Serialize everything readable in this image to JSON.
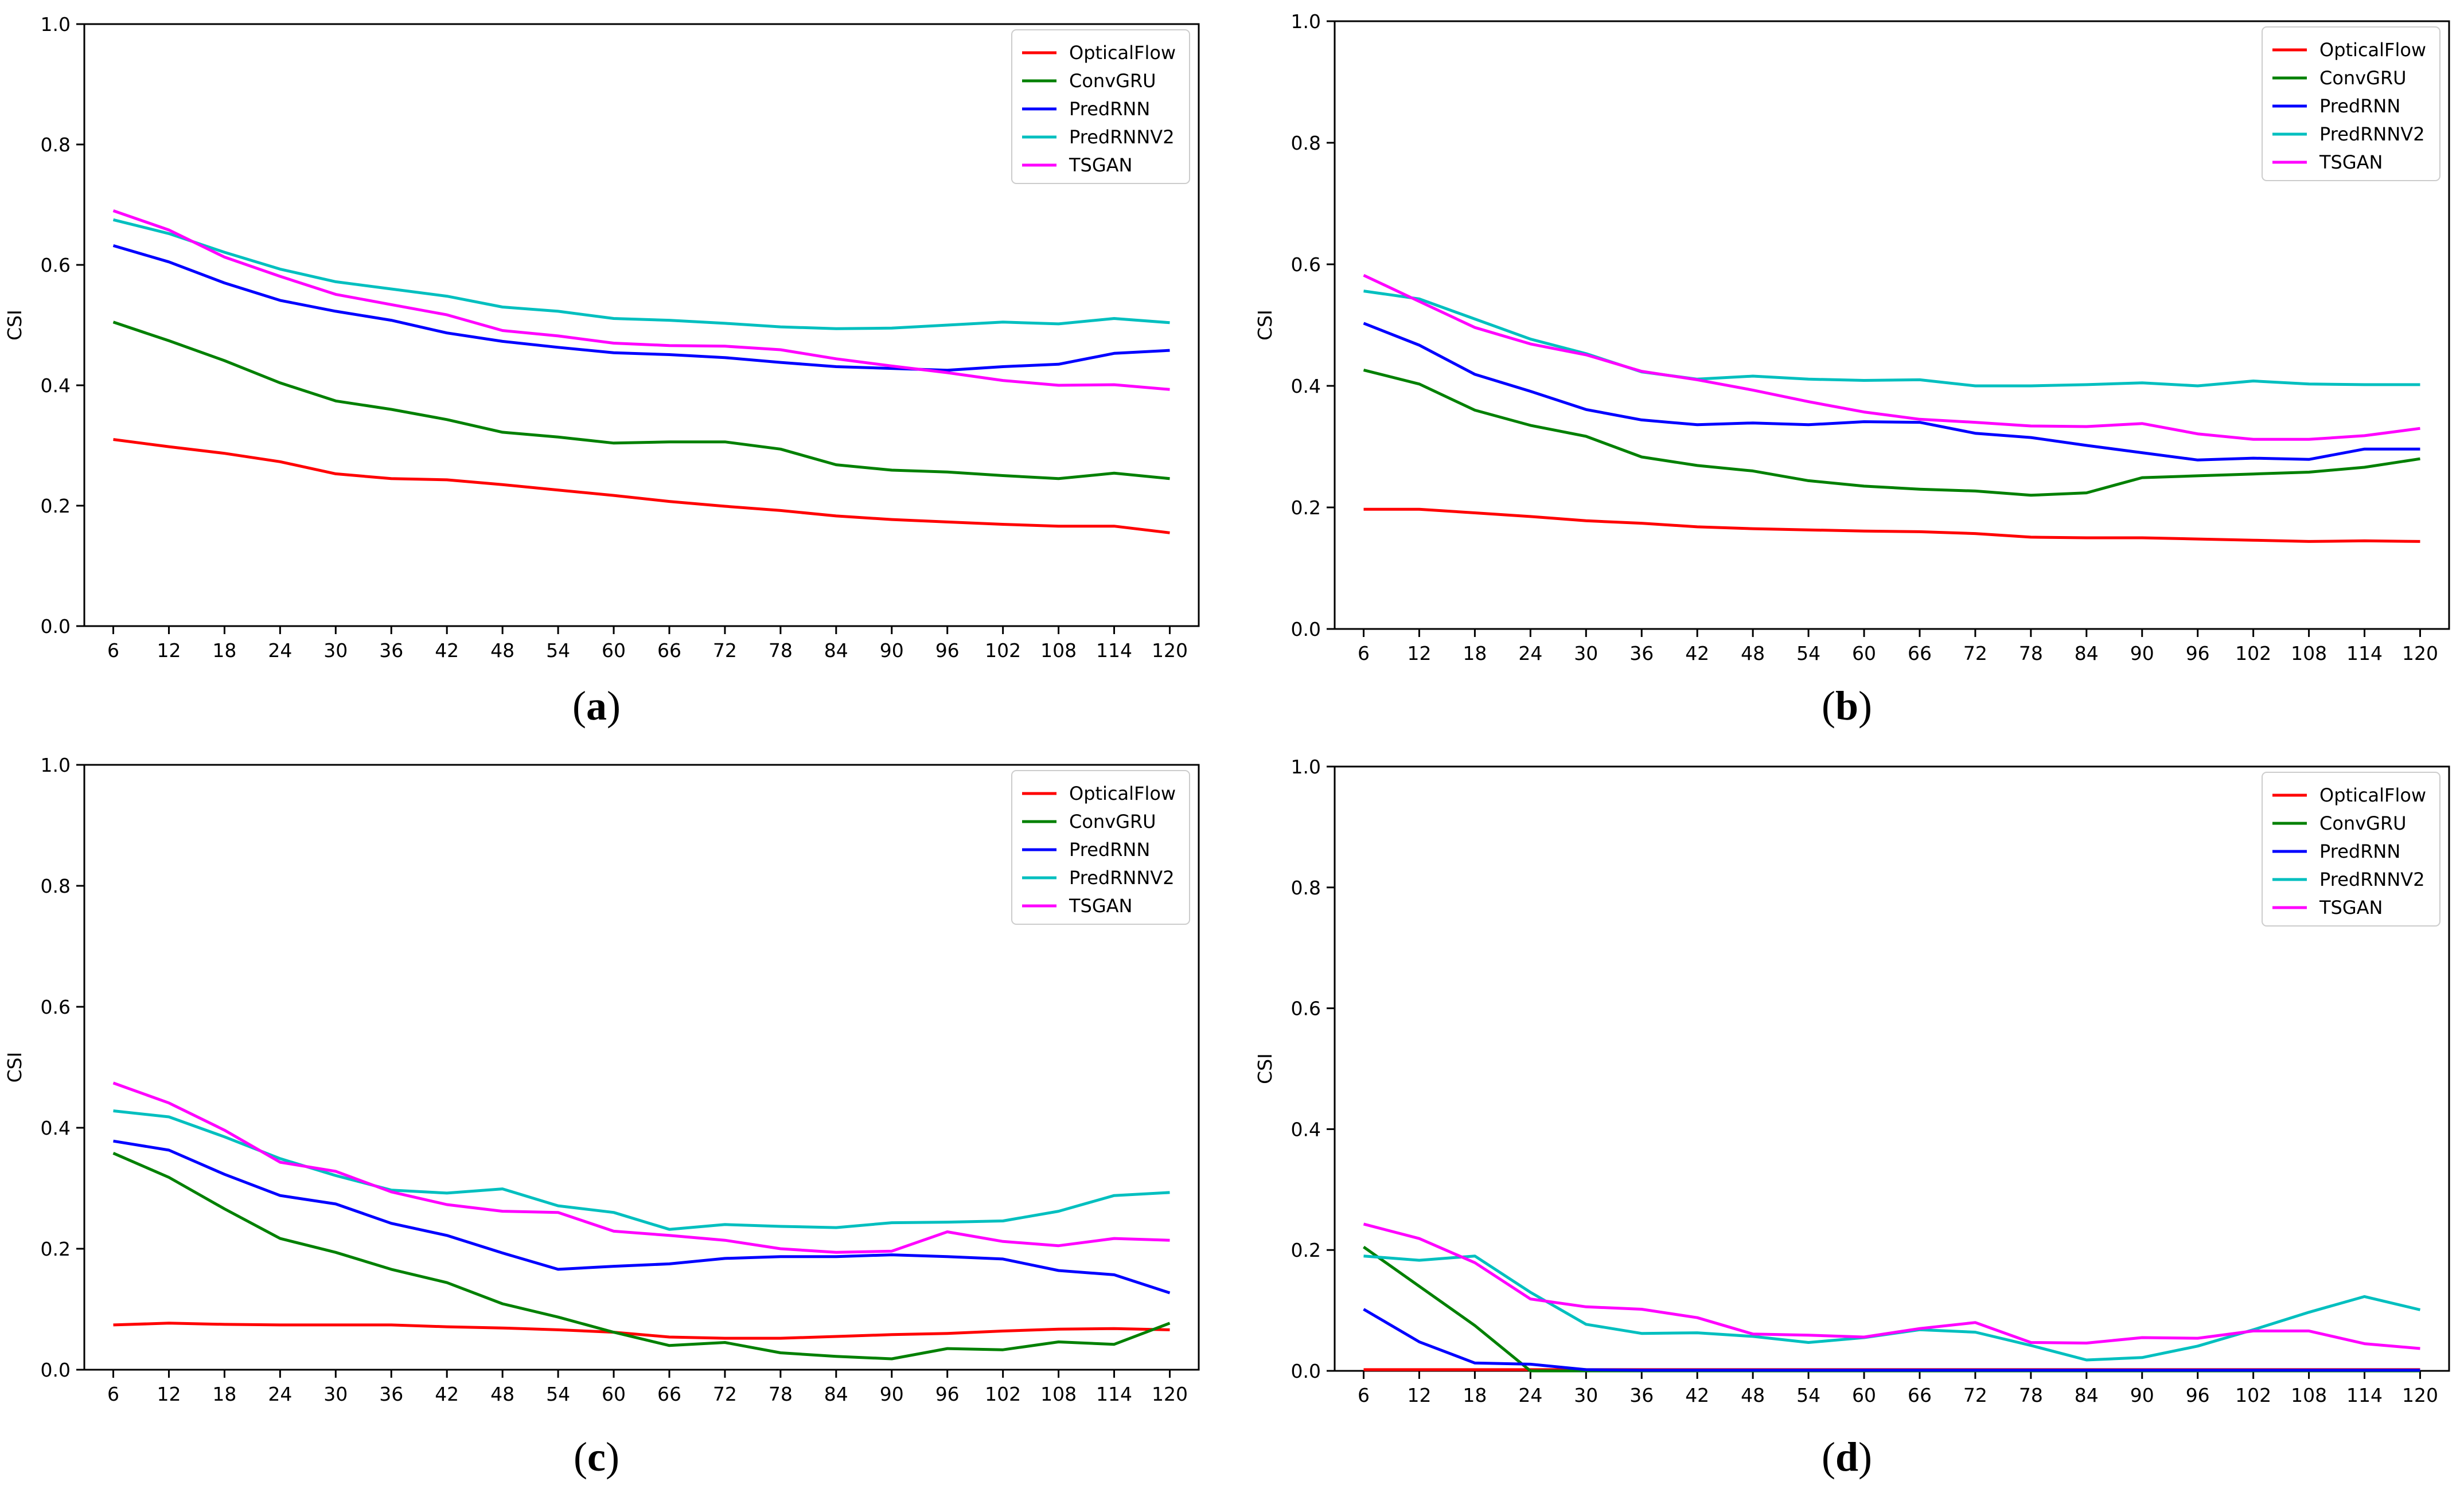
{
  "figure": {
    "colors": {
      "OpticalFlow": "#ff0000",
      "ConvGRU": "#008000",
      "PredRNN": "#0000ff",
      "PredRNNV2": "#00bfbf",
      "TSGAN": "#ff00ff"
    }
  },
  "chart_data": [
    {
      "type": "line",
      "panel": "a",
      "caption_open": "(",
      "caption_letter": "a",
      "caption_close": ")",
      "ylabel": "CSI",
      "xlabel": "",
      "ylim": [
        0,
        1
      ],
      "yticks": [
        "0.0",
        "0.2",
        "0.4",
        "0.6",
        "0.8",
        "1.0"
      ],
      "categories": [
        "6",
        "12",
        "18",
        "24",
        "30",
        "36",
        "42",
        "48",
        "54",
        "60",
        "66",
        "72",
        "78",
        "84",
        "90",
        "96",
        "102",
        "108",
        "114",
        "120"
      ],
      "legend_position": "top-right",
      "series": [
        {
          "name": "OpticalFlow",
          "values": [
            0.31,
            0.298,
            0.287,
            0.273,
            0.253,
            0.245,
            0.243,
            0.235,
            0.226,
            0.217,
            0.207,
            0.199,
            0.192,
            0.183,
            0.177,
            0.173,
            0.169,
            0.166,
            0.166,
            0.155
          ]
        },
        {
          "name": "ConvGRU",
          "values": [
            0.505,
            0.474,
            0.441,
            0.404,
            0.374,
            0.36,
            0.343,
            0.322,
            0.314,
            0.304,
            0.306,
            0.306,
            0.294,
            0.268,
            0.259,
            0.256,
            0.25,
            0.245,
            0.254,
            0.245
          ]
        },
        {
          "name": "PredRNN",
          "values": [
            0.632,
            0.605,
            0.57,
            0.541,
            0.523,
            0.508,
            0.487,
            0.473,
            0.463,
            0.454,
            0.451,
            0.446,
            0.438,
            0.431,
            0.428,
            0.425,
            0.431,
            0.435,
            0.453,
            0.458
          ]
        },
        {
          "name": "PredRNNV2",
          "values": [
            0.675,
            0.652,
            0.621,
            0.593,
            0.572,
            0.56,
            0.548,
            0.53,
            0.523,
            0.511,
            0.508,
            0.503,
            0.497,
            0.494,
            0.495,
            0.5,
            0.505,
            0.502,
            0.511,
            0.504
          ]
        },
        {
          "name": "TSGAN",
          "values": [
            0.69,
            0.658,
            0.613,
            0.581,
            0.551,
            0.534,
            0.517,
            0.491,
            0.482,
            0.47,
            0.466,
            0.465,
            0.459,
            0.444,
            0.432,
            0.421,
            0.408,
            0.4,
            0.401,
            0.393
          ]
        }
      ]
    },
    {
      "type": "line",
      "panel": "b",
      "caption_open": "(",
      "caption_letter": "b",
      "caption_close": ")",
      "ylabel": "CSI",
      "xlabel": "",
      "ylim": [
        0,
        1
      ],
      "yticks": [
        "0.0",
        "0.2",
        "0.4",
        "0.6",
        "0.8",
        "1.0"
      ],
      "categories": [
        "6",
        "12",
        "18",
        "24",
        "30",
        "36",
        "42",
        "48",
        "54",
        "60",
        "66",
        "72",
        "78",
        "84",
        "90",
        "96",
        "102",
        "108",
        "114",
        "120"
      ],
      "legend_position": "top-right",
      "series": [
        {
          "name": "OpticalFlow",
          "values": [
            0.197,
            0.197,
            0.191,
            0.185,
            0.178,
            0.174,
            0.168,
            0.165,
            0.163,
            0.161,
            0.16,
            0.157,
            0.151,
            0.15,
            0.15,
            0.148,
            0.146,
            0.144,
            0.145,
            0.144
          ]
        },
        {
          "name": "ConvGRU",
          "values": [
            0.426,
            0.403,
            0.36,
            0.335,
            0.317,
            0.283,
            0.269,
            0.26,
            0.244,
            0.235,
            0.23,
            0.227,
            0.22,
            0.224,
            0.249,
            0.252,
            0.255,
            0.258,
            0.266,
            0.28
          ]
        },
        {
          "name": "PredRNN",
          "values": [
            0.503,
            0.467,
            0.419,
            0.391,
            0.361,
            0.344,
            0.336,
            0.339,
            0.336,
            0.341,
            0.34,
            0.322,
            0.315,
            0.302,
            0.29,
            0.278,
            0.281,
            0.279,
            0.296,
            0.296
          ]
        },
        {
          "name": "PredRNNV2",
          "values": [
            0.556,
            0.543,
            0.51,
            0.477,
            0.453,
            0.423,
            0.411,
            0.416,
            0.411,
            0.409,
            0.41,
            0.4,
            0.4,
            0.402,
            0.405,
            0.4,
            0.408,
            0.403,
            0.402,
            0.402
          ]
        },
        {
          "name": "TSGAN",
          "values": [
            0.582,
            0.539,
            0.496,
            0.469,
            0.451,
            0.424,
            0.41,
            0.393,
            0.374,
            0.357,
            0.345,
            0.34,
            0.334,
            0.333,
            0.338,
            0.321,
            0.312,
            0.312,
            0.318,
            0.33
          ]
        }
      ]
    },
    {
      "type": "line",
      "panel": "c",
      "caption_open": "(",
      "caption_letter": "c",
      "caption_close": ")",
      "ylabel": "CSI",
      "xlabel": "",
      "ylim": [
        0,
        1
      ],
      "yticks": [
        "0.0",
        "0.2",
        "0.4",
        "0.6",
        "0.8",
        "1.0"
      ],
      "categories": [
        "6",
        "12",
        "18",
        "24",
        "30",
        "36",
        "42",
        "48",
        "54",
        "60",
        "66",
        "72",
        "78",
        "84",
        "90",
        "96",
        "102",
        "108",
        "114",
        "120"
      ],
      "legend_position": "top-right",
      "series": [
        {
          "name": "OpticalFlow",
          "values": [
            0.074,
            0.077,
            0.075,
            0.074,
            0.074,
            0.074,
            0.071,
            0.069,
            0.066,
            0.062,
            0.054,
            0.052,
            0.052,
            0.055,
            0.058,
            0.06,
            0.064,
            0.067,
            0.068,
            0.066
          ]
        },
        {
          "name": "ConvGRU",
          "values": [
            0.358,
            0.318,
            0.266,
            0.217,
            0.194,
            0.166,
            0.144,
            0.109,
            0.087,
            0.062,
            0.04,
            0.045,
            0.028,
            0.022,
            0.018,
            0.035,
            0.033,
            0.046,
            0.042,
            0.077
          ]
        },
        {
          "name": "PredRNN",
          "values": [
            0.378,
            0.363,
            0.323,
            0.288,
            0.274,
            0.242,
            0.222,
            0.193,
            0.166,
            0.171,
            0.175,
            0.184,
            0.187,
            0.187,
            0.19,
            0.187,
            0.183,
            0.164,
            0.157,
            0.127
          ]
        },
        {
          "name": "PredRNNV2",
          "values": [
            0.428,
            0.418,
            0.385,
            0.349,
            0.321,
            0.297,
            0.292,
            0.299,
            0.271,
            0.26,
            0.232,
            0.24,
            0.237,
            0.235,
            0.243,
            0.244,
            0.246,
            0.262,
            0.288,
            0.293
          ]
        },
        {
          "name": "TSGAN",
          "values": [
            0.474,
            0.441,
            0.396,
            0.343,
            0.328,
            0.294,
            0.273,
            0.262,
            0.26,
            0.229,
            0.222,
            0.214,
            0.2,
            0.194,
            0.196,
            0.228,
            0.212,
            0.205,
            0.217,
            0.214
          ]
        }
      ]
    },
    {
      "type": "line",
      "panel": "d",
      "caption_open": "(",
      "caption_letter": "d",
      "caption_close": ")",
      "ylabel": "CSI",
      "xlabel": "",
      "ylim": [
        0,
        1
      ],
      "yticks": [
        "0.0",
        "0.2",
        "0.4",
        "0.6",
        "0.8",
        "1.0"
      ],
      "categories": [
        "6",
        "12",
        "18",
        "24",
        "30",
        "36",
        "42",
        "48",
        "54",
        "60",
        "66",
        "72",
        "78",
        "84",
        "90",
        "96",
        "102",
        "108",
        "114",
        "120"
      ],
      "legend_position": "top-right",
      "series": [
        {
          "name": "OpticalFlow",
          "values": [
            0.002,
            0.002,
            0.002,
            0.002,
            0.002,
            0.002,
            0.002,
            0.002,
            0.002,
            0.002,
            0.002,
            0.002,
            0.002,
            0.002,
            0.002,
            0.002,
            0.002,
            0.002,
            0.002,
            0.002
          ]
        },
        {
          "name": "ConvGRU",
          "values": [
            0.205,
            0.14,
            0.075,
            0,
            0,
            0,
            0,
            0,
            0,
            0,
            0,
            0,
            0,
            0,
            0,
            0,
            0,
            0,
            0,
            0
          ]
        },
        {
          "name": "PredRNN",
          "values": [
            0.102,
            0.048,
            0.013,
            0.011,
            0.002,
            0.001,
            0.001,
            0.001,
            0.001,
            0.001,
            0.001,
            0.001,
            0.001,
            0.001,
            0.001,
            0.001,
            0.001,
            0.001,
            0.001,
            0.001
          ]
        },
        {
          "name": "PredRNNV2",
          "values": [
            0.19,
            0.183,
            0.19,
            0.13,
            0.077,
            0.062,
            0.063,
            0.057,
            0.047,
            0.055,
            0.068,
            0.064,
            0.042,
            0.018,
            0.022,
            0.041,
            0.068,
            0.097,
            0.123,
            0.101
          ]
        },
        {
          "name": "TSGAN",
          "values": [
            0.243,
            0.219,
            0.179,
            0.119,
            0.106,
            0.102,
            0.088,
            0.061,
            0.059,
            0.056,
            0.07,
            0.08,
            0.047,
            0.046,
            0.055,
            0.054,
            0.066,
            0.066,
            0.045,
            0.037
          ]
        }
      ]
    }
  ]
}
